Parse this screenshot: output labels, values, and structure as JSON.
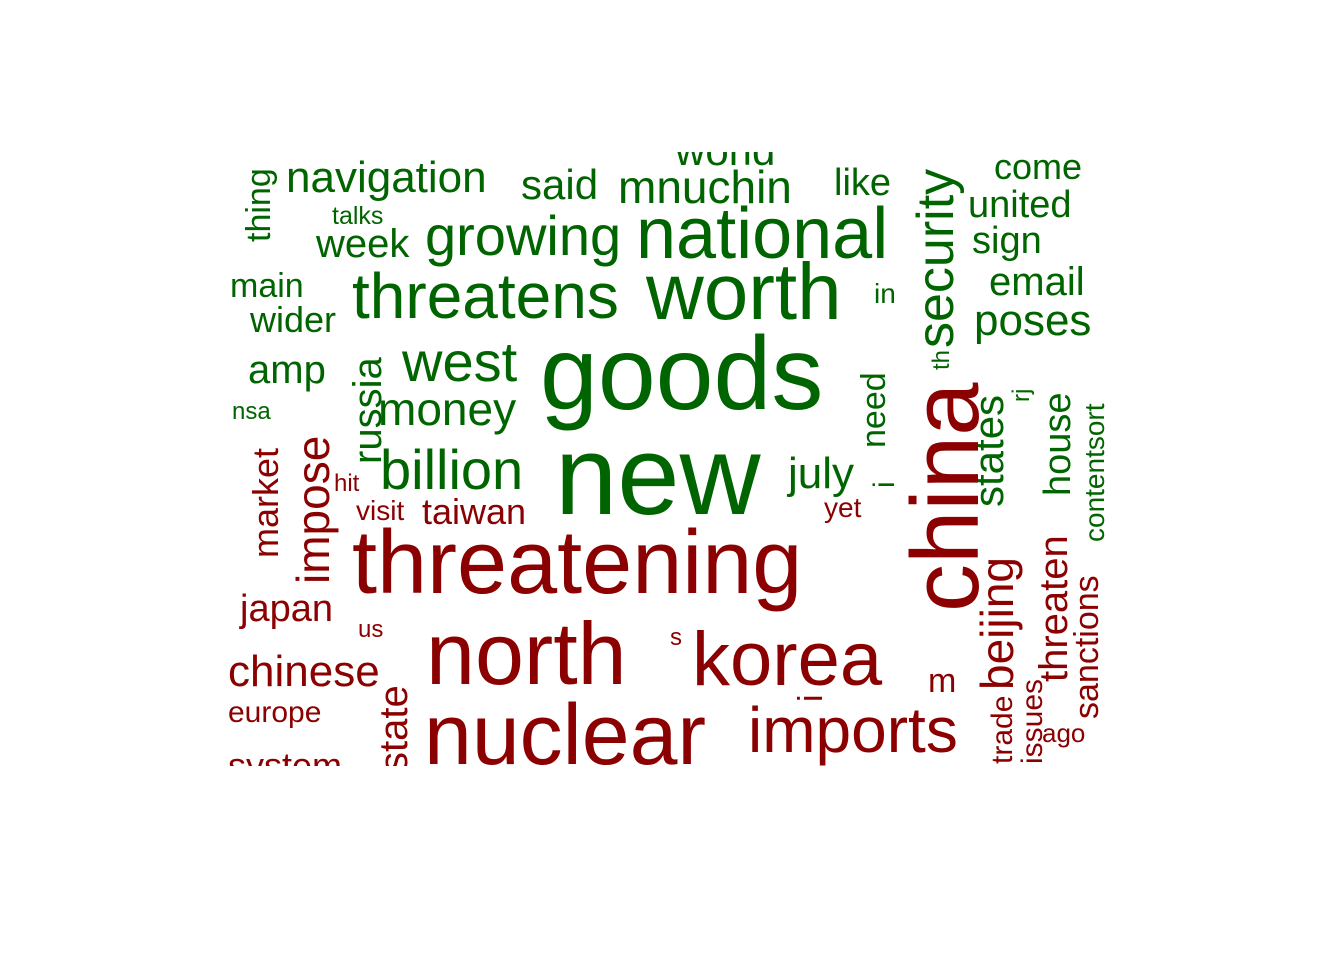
{
  "colors": {
    "positive": "#006400",
    "negative": "#8b0000"
  },
  "words": [
    {
      "text": "world",
      "group": "positive"
    },
    {
      "text": "navigation",
      "group": "positive"
    },
    {
      "text": "said",
      "group": "positive"
    },
    {
      "text": "mnuchin",
      "group": "positive"
    },
    {
      "text": "like",
      "group": "positive"
    },
    {
      "text": "come",
      "group": "positive"
    },
    {
      "text": "thing",
      "group": "positive"
    },
    {
      "text": "talks",
      "group": "positive"
    },
    {
      "text": "united",
      "group": "positive"
    },
    {
      "text": "week",
      "group": "positive"
    },
    {
      "text": "growing",
      "group": "positive"
    },
    {
      "text": "national",
      "group": "positive"
    },
    {
      "text": "sign",
      "group": "positive"
    },
    {
      "text": "security",
      "group": "positive"
    },
    {
      "text": "main",
      "group": "positive"
    },
    {
      "text": "threatens",
      "group": "positive"
    },
    {
      "text": "worth",
      "group": "positive"
    },
    {
      "text": "in",
      "group": "positive"
    },
    {
      "text": "email",
      "group": "positive"
    },
    {
      "text": "wider",
      "group": "positive"
    },
    {
      "text": "poses",
      "group": "positive"
    },
    {
      "text": "amp",
      "group": "positive"
    },
    {
      "text": "west",
      "group": "positive"
    },
    {
      "text": "goods",
      "group": "positive"
    },
    {
      "text": "russia",
      "group": "positive"
    },
    {
      "text": "th",
      "group": "positive"
    },
    {
      "text": "nsa",
      "group": "positive"
    },
    {
      "text": "money",
      "group": "positive"
    },
    {
      "text": "need",
      "group": "positive"
    },
    {
      "text": "rj",
      "group": "positive"
    },
    {
      "text": "states",
      "group": "positive"
    },
    {
      "text": "house",
      "group": "positive"
    },
    {
      "text": "contentsort",
      "group": "positive"
    },
    {
      "text": "billion",
      "group": "positive"
    },
    {
      "text": "new",
      "group": "positive"
    },
    {
      "text": "july",
      "group": "positive"
    },
    {
      "text": "i",
      "group": "positive"
    },
    {
      "text": "market",
      "group": "negative"
    },
    {
      "text": "impose",
      "group": "negative"
    },
    {
      "text": "hit",
      "group": "negative"
    },
    {
      "text": "visit",
      "group": "negative"
    },
    {
      "text": "taiwan",
      "group": "negative"
    },
    {
      "text": "yet",
      "group": "negative"
    },
    {
      "text": "threatening",
      "group": "negative"
    },
    {
      "text": "china",
      "group": "negative"
    },
    {
      "text": "beijing",
      "group": "negative"
    },
    {
      "text": "threaten",
      "group": "negative"
    },
    {
      "text": "sanctions",
      "group": "negative"
    },
    {
      "text": "japan",
      "group": "negative"
    },
    {
      "text": "us",
      "group": "negative"
    },
    {
      "text": "s",
      "group": "negative"
    },
    {
      "text": "north",
      "group": "negative"
    },
    {
      "text": "korea",
      "group": "negative"
    },
    {
      "text": "chinese",
      "group": "negative"
    },
    {
      "text": "m",
      "group": "negative"
    },
    {
      "text": "i",
      "group": "negative"
    },
    {
      "text": "europe",
      "group": "negative"
    },
    {
      "text": "state",
      "group": "negative"
    },
    {
      "text": "nuclear",
      "group": "negative"
    },
    {
      "text": "imports",
      "group": "negative"
    },
    {
      "text": "trade",
      "group": "negative"
    },
    {
      "text": "issues",
      "group": "negative"
    },
    {
      "text": "ago",
      "group": "negative"
    },
    {
      "text": "system",
      "group": "negative"
    }
  ]
}
